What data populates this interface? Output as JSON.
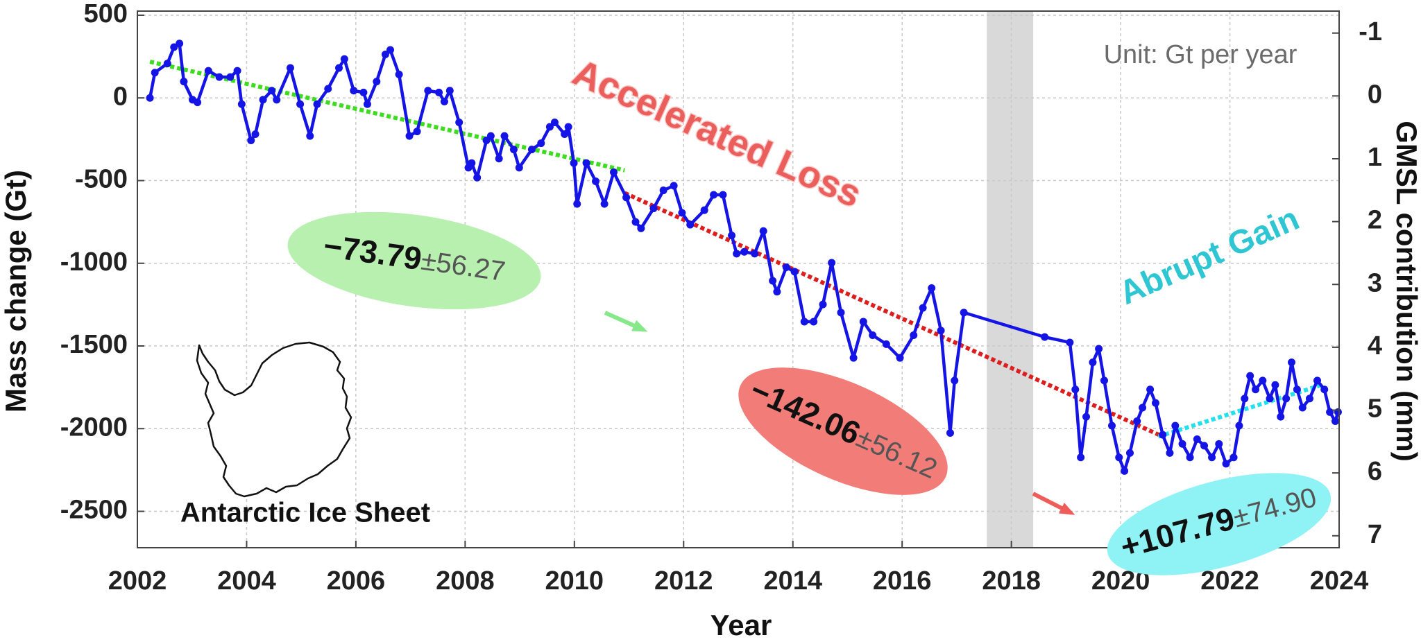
{
  "chart_data": {
    "type": "line",
    "x_label": "Year",
    "y_label": "Mass change (Gt)",
    "y2_label": "GMSL contribution (mm)",
    "xlim": [
      2002,
      2024
    ],
    "xticks": [
      2002,
      2004,
      2006,
      2008,
      2010,
      2012,
      2014,
      2016,
      2018,
      2020,
      2022,
      2024
    ],
    "ylim": [
      -2720,
      525
    ],
    "yticks": [
      -2500,
      -2000,
      -1500,
      -1000,
      -500,
      0,
      500
    ],
    "y2lim": [
      -1.35,
      7.19
    ],
    "y2ticks": [
      -1,
      0,
      1,
      2,
      3,
      4,
      5,
      6,
      7
    ],
    "y2_inverted": true,
    "grid": true,
    "shaded_span": {
      "x": [
        2017.55,
        2018.4
      ],
      "color": "#d9d9d9"
    },
    "series": [
      {
        "color": "#1414e6",
        "x": [
          2002.23,
          2002.32,
          2002.55,
          2002.67,
          2002.77,
          2002.85,
          2003.01,
          2003.1,
          2003.3,
          2003.5,
          2003.7,
          2003.83,
          2003.91,
          2004.08,
          2004.16,
          2004.3,
          2004.46,
          2004.55,
          2004.8,
          2004.98,
          2005.16,
          2005.29,
          2005.49,
          2005.69,
          2005.79,
          2005.96,
          2006.14,
          2006.21,
          2006.38,
          2006.54,
          2006.63,
          2006.79,
          2006.98,
          2007.12,
          2007.32,
          2007.52,
          2007.62,
          2007.72,
          2007.89,
          2008.06,
          2008.12,
          2008.22,
          2008.39,
          2008.47,
          2008.62,
          2008.72,
          2008.89,
          2008.99,
          2009.22,
          2009.39,
          2009.55,
          2009.64,
          2009.82,
          2009.89,
          2009.99,
          2010.05,
          2010.22,
          2010.39,
          2010.55,
          2010.72,
          2010.95,
          2011.12,
          2011.22,
          2011.45,
          2011.63,
          2011.82,
          2011.97,
          2012.12,
          2012.38,
          2012.55,
          2012.72,
          2012.88,
          2012.97,
          2013.11,
          2013.3,
          2013.46,
          2013.63,
          2013.71,
          2013.88,
          2014.03,
          2014.21,
          2014.38,
          2014.55,
          2014.71,
          2014.88,
          2015.11,
          2015.29,
          2015.46,
          2015.71,
          2015.96,
          2016.21,
          2016.38,
          2016.54,
          2016.71,
          2016.88,
          2016.96,
          2017.13,
          2018.61,
          2019.07,
          2019.17,
          2019.27,
          2019.37,
          2019.49,
          2019.6,
          2019.7,
          2019.84,
          2019.97,
          2020.07,
          2020.17,
          2020.3,
          2020.4,
          2020.54,
          2020.64,
          2020.77,
          2020.9,
          2021.0,
          2021.13,
          2021.27,
          2021.4,
          2021.53,
          2021.67,
          2021.8,
          2021.93,
          2022.07,
          2022.17,
          2022.27,
          2022.37,
          2022.47,
          2022.6,
          2022.73,
          2022.83,
          2022.93,
          2023.03,
          2023.13,
          2023.23,
          2023.33,
          2023.46,
          2023.6,
          2023.73,
          2023.83,
          2023.93,
          2023.98
        ],
        "values": [
          0,
          153,
          208,
          307,
          329,
          99,
          -11,
          -27,
          164,
          126,
          126,
          164,
          -38,
          -257,
          -219,
          -11,
          44,
          -11,
          181,
          -38,
          -230,
          -38,
          55,
          181,
          235,
          44,
          33,
          -38,
          99,
          263,
          290,
          142,
          -230,
          -203,
          44,
          33,
          -22,
          44,
          -148,
          -422,
          -394,
          -482,
          -257,
          -230,
          -367,
          -230,
          -312,
          -422,
          -312,
          -274,
          -175,
          -148,
          -219,
          -175,
          -394,
          -641,
          -394,
          -504,
          -641,
          -449,
          -602,
          -750,
          -789,
          -668,
          -559,
          -531,
          -695,
          -767,
          -679,
          -586,
          -586,
          -832,
          -942,
          -931,
          -942,
          -805,
          -1106,
          -1172,
          -1024,
          -1051,
          -1353,
          -1353,
          -1249,
          -997,
          -1298,
          -1572,
          -1353,
          -1435,
          -1489,
          -1572,
          -1435,
          -1270,
          -1150,
          -1407,
          -2026,
          -1709,
          -1298,
          -1446,
          -1479,
          -1763,
          -2174,
          -1928,
          -1599,
          -1517,
          -1709,
          -1982,
          -2174,
          -2256,
          -2147,
          -1955,
          -1873,
          -1763,
          -1845,
          -2037,
          -2147,
          -1982,
          -2092,
          -2174,
          -2064,
          -2103,
          -2174,
          -2092,
          -2212,
          -2174,
          -1982,
          -1818,
          -1681,
          -1763,
          -1709,
          -1818,
          -1736,
          -1928,
          -1818,
          -1599,
          -1763,
          -1873,
          -1818,
          -1709,
          -1763,
          -1900,
          -1955,
          -1900
        ]
      }
    ],
    "trend_lines": [
      {
        "color": "#3ddc1e",
        "x": [
          2002.23,
          2010.92
        ],
        "values": [
          219,
          -438
        ]
      },
      {
        "color": "#dc1e1e",
        "x": [
          2010.92,
          2020.7
        ],
        "values": [
          -575,
          -2037
        ]
      },
      {
        "color": "#22e0ec",
        "x": [
          2020.69,
          2023.68
        ],
        "values": [
          -2048,
          -1736
        ]
      }
    ],
    "annotations": {
      "unit": "Unit: Gt per year",
      "loss": "Accelerated Loss",
      "gain": "Abrupt Gain",
      "region": "Antarctic Ice Sheet"
    },
    "rates": [
      {
        "rate": "−73.79",
        "uncertainty": "±56.27",
        "color": "#b8f0b0"
      },
      {
        "rate": "−142.06",
        "uncertainty": "±56.12",
        "color": "#f27c78"
      },
      {
        "rate": "+107.79",
        "uncertainty": "±74.90",
        "color": "#8ff2f4"
      }
    ]
  }
}
